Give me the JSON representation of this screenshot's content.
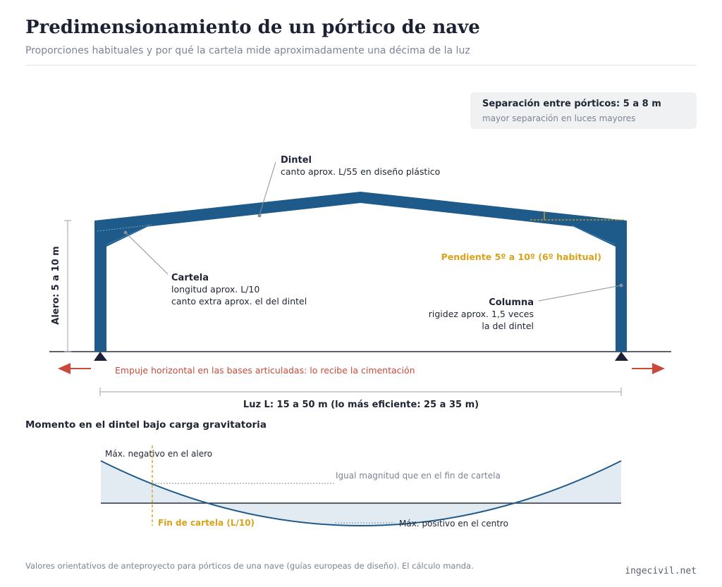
{
  "header": {
    "title": "Predimensionamiento de un pórtico de nave",
    "subtitle": "Proporciones habituales y por qué la cartela mide aproximadamente una décima de la luz"
  },
  "separation": {
    "title": "Separación entre pórticos: 5 a 8 m",
    "subtitle": "mayor separación en luces mayores"
  },
  "frame": {
    "dintel_title": "Dintel",
    "dintel_desc": "canto aprox. L/55 en diseño plástico",
    "cartela_title": "Cartela",
    "cartela_line1": "longitud aprox. L/10",
    "cartela_line2": "canto extra aprox. el del dintel",
    "columna_title": "Columna",
    "columna_line1": "rigidez aprox. 1,5 veces",
    "columna_line2": "la del dintel",
    "pendiente": "Pendiente 5º a 10º (6º habitual)",
    "alero": "Alero: 5 a 10 m",
    "empuje": "Empuje horizontal en las bases articuladas: lo recibe la cimentación",
    "luz": "Luz L: 15 a 50 m (lo más eficiente: 25 a 35 m)"
  },
  "moment": {
    "section_title": "Momento en el dintel bajo carga gravitatoria",
    "max_neg": "Máx. negativo en el alero",
    "igual": "Igual magnitud que en el fin de cartela",
    "fin_cartela": "Fin de cartela (L/10)",
    "max_pos": "Máx. positivo en el centro"
  },
  "footer": {
    "note": "Valores orientativos de anteproyecto para pórticos de una nave (guías europeas de diseño). El cálculo manda.",
    "brand": "ingecivil.net"
  },
  "colors": {
    "steel": "#1e5a8a",
    "accent": "#d9a21a",
    "arrow": "#c94a3a",
    "text": "#1f2533",
    "muted": "#7c8494"
  }
}
